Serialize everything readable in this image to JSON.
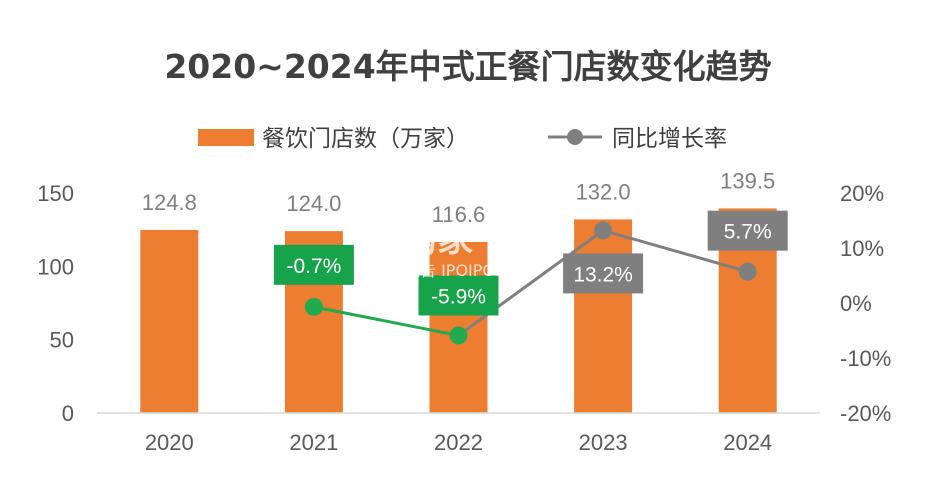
{
  "colors": {
    "bar": "#ED7D31",
    "line_negative": "#22AA4F",
    "line_positive": "#7F7F7F",
    "label_box_negative": "#17A34A",
    "label_box_positive": "#7F7F7F",
    "axis": "#D9D9D9",
    "text": "#404040"
  },
  "chart_data": {
    "type": "bar",
    "title": "2020~2024年中式正餐门店数变化趋势",
    "categories": [
      "2020",
      "2021",
      "2022",
      "2023",
      "2024"
    ],
    "series": [
      {
        "name": "餐饮门店数（万家）",
        "type": "bar",
        "axis": "left",
        "values": [
          124.8,
          124.0,
          116.6,
          132.0,
          139.5
        ]
      },
      {
        "name": "同比增长率",
        "type": "line",
        "axis": "right",
        "values": [
          null,
          -0.7,
          -5.9,
          13.2,
          5.7
        ]
      }
    ],
    "bar_labels": [
      "124.8",
      "124.0",
      "116.6",
      "132.0",
      "139.5"
    ],
    "line_labels": [
      "",
      "-0.7%",
      "-5.9%",
      "13.2%",
      "5.7%"
    ],
    "y_left": {
      "min": 0,
      "max": 150,
      "ticks": [
        "0",
        "50",
        "100",
        "150"
      ]
    },
    "y_right": {
      "min": -20,
      "max": 20,
      "ticks": [
        "-20%",
        "-10%",
        "0%",
        "10%",
        "20%"
      ]
    },
    "legend_position": "top",
    "grid": false
  },
  "watermark": {
    "title": "开购家",
    "subtitle": "行业报告 IPOIPO.CN"
  }
}
